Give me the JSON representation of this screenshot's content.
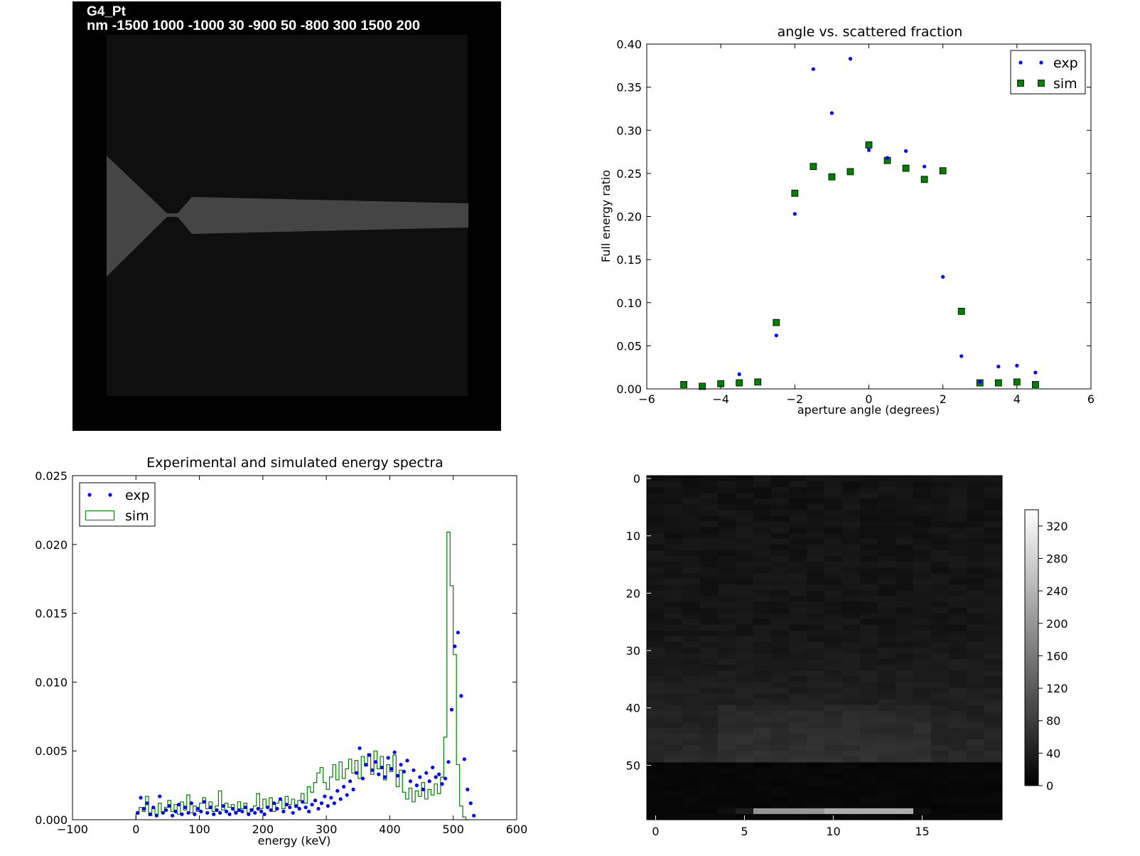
{
  "render_panel": {
    "title": "G4_Pt",
    "subtitle": "nm -1500 1000 -1000 30 -900 50 -800 300 1500 200",
    "background": "#000000",
    "slab_color": "#0f0f0f",
    "shape_color": "#454545"
  },
  "chart_data": [
    {
      "type": "scatter",
      "title": "angle vs. scattered fraction",
      "xlabel": "aperture angle (degrees)",
      "ylabel": "Full energy ratio",
      "xlim": [
        -6,
        6
      ],
      "ylim": [
        0,
        0.4
      ],
      "xticks": [
        -6,
        -4,
        -2,
        0,
        2,
        4,
        6
      ],
      "xtick_labels": [
        "−6",
        "−4",
        "−2",
        "0",
        "2",
        "4",
        "6"
      ],
      "yticks": [
        0.0,
        0.05,
        0.1,
        0.15,
        0.2,
        0.25,
        0.3,
        0.35,
        0.4
      ],
      "ytick_labels": [
        "0.00",
        "0.05",
        "0.10",
        "0.15",
        "0.20",
        "0.25",
        "0.30",
        "0.35",
        "0.40"
      ],
      "legend": "top-right",
      "series": [
        {
          "name": "exp",
          "marker": "dot",
          "color": "#0000ff",
          "x": [
            -2.5,
            -2,
            -1.5,
            -1,
            -0.5,
            0,
            0.5,
            1,
            1.5,
            2,
            2.5,
            3,
            3.5,
            4,
            4.5,
            -3.5
          ],
          "y": [
            0.062,
            0.203,
            0.371,
            0.32,
            0.383,
            0.277,
            0.268,
            0.276,
            0.258,
            0.13,
            0.038,
            0.008,
            0.026,
            0.027,
            0.019,
            0.017
          ]
        },
        {
          "name": "sim",
          "marker": "square",
          "color": "#007f00",
          "x": [
            -5,
            -4.5,
            -4,
            -3.5,
            -3,
            -2.5,
            -2,
            -1.5,
            -1,
            -0.5,
            0,
            0.5,
            1,
            1.5,
            2,
            2.5,
            3,
            3.5,
            4,
            4.5
          ],
          "y": [
            0.005,
            0.003,
            0.006,
            0.007,
            0.008,
            0.077,
            0.227,
            0.258,
            0.246,
            0.252,
            0.283,
            0.265,
            0.256,
            0.243,
            0.253,
            0.09,
            0.007,
            0.007,
            0.008,
            0.005
          ]
        }
      ]
    },
    {
      "type": "line",
      "title": "Experimental and simulated energy spectra",
      "xlabel": "energy (keV)",
      "ylabel": "",
      "xlim": [
        -100,
        600
      ],
      "ylim": [
        0,
        0.025
      ],
      "xticks": [
        -100,
        0,
        100,
        200,
        300,
        400,
        500,
        600
      ],
      "xtick_labels": [
        "−100",
        "0",
        "100",
        "200",
        "300",
        "400",
        "500",
        "600"
      ],
      "yticks": [
        0,
        0.005,
        0.01,
        0.015,
        0.02,
        0.025
      ],
      "ytick_labels": [
        "0.000",
        "0.005",
        "0.010",
        "0.015",
        "0.020",
        "0.025"
      ],
      "legend": "top-left",
      "series": [
        {
          "name": "exp",
          "marker": "dot",
          "color": "#0000ff",
          "x": [
            0,
            5,
            10,
            15,
            20,
            25,
            30,
            35,
            40,
            45,
            50,
            55,
            60,
            65,
            70,
            75,
            80,
            85,
            90,
            95,
            100,
            105,
            110,
            115,
            120,
            125,
            130,
            135,
            140,
            145,
            150,
            155,
            160,
            165,
            170,
            175,
            180,
            185,
            190,
            195,
            200,
            205,
            210,
            215,
            220,
            225,
            230,
            235,
            240,
            245,
            250,
            255,
            260,
            265,
            270,
            275,
            280,
            285,
            290,
            295,
            300,
            305,
            310,
            315,
            320,
            325,
            330,
            335,
            340,
            345,
            350,
            355,
            360,
            365,
            370,
            375,
            380,
            385,
            390,
            395,
            400,
            405,
            410,
            415,
            420,
            425,
            430,
            435,
            440,
            445,
            450,
            455,
            460,
            465,
            470,
            475,
            480,
            485,
            490,
            495,
            500,
            505,
            510,
            515,
            520,
            525,
            530
          ],
          "y": [
            0.0005,
            0.0016,
            0.0008,
            0.0012,
            0.0004,
            0.0009,
            0.0003,
            0.0017,
            0.0005,
            0.0007,
            0.001,
            0.0003,
            0.0006,
            0.0011,
            0.0004,
            0.0009,
            0.0005,
            0.0012,
            0.0004,
            0.0008,
            0.0006,
            0.0013,
            0.0005,
            0.0009,
            0.0004,
            0.0007,
            0.0005,
            0.001,
            0.0006,
            0.0004,
            0.0008,
            0.0005,
            0.0007,
            0.0006,
            0.0009,
            0.0004,
            0.0007,
            0.0005,
            0.0008,
            0.0006,
            0.0004,
            0.0009,
            0.0007,
            0.0012,
            0.0008,
            0.0015,
            0.0006,
            0.0011,
            0.0009,
            0.0005,
            0.001,
            0.0008,
            0.0013,
            0.0009,
            0.0006,
            0.0011,
            0.0014,
            0.0008,
            0.0012,
            0.0017,
            0.001,
            0.0016,
            0.0012,
            0.0021,
            0.0015,
            0.0024,
            0.0018,
            0.0028,
            0.0022,
            0.0034,
            0.0052,
            0.003,
            0.004,
            0.0047,
            0.0036,
            0.0042,
            0.0033,
            0.0038,
            0.0031,
            0.0045,
            0.0037,
            0.0049,
            0.0032,
            0.004,
            0.0035,
            0.0043,
            0.0028,
            0.0036,
            0.0025,
            0.0031,
            0.0022,
            0.0034,
            0.0028,
            0.0038,
            0.0031,
            0.0033,
            0.0026,
            0.003,
            0.0042,
            0.008,
            0.0126,
            0.0136,
            0.009,
            0.0044,
            0.0022,
            0.0012,
            0.0003
          ]
        },
        {
          "name": "sim",
          "marker": "step",
          "color": "#007f00",
          "x": [
            0,
            5,
            10,
            15,
            20,
            25,
            30,
            35,
            40,
            45,
            50,
            55,
            60,
            65,
            70,
            75,
            80,
            85,
            90,
            95,
            100,
            105,
            110,
            115,
            120,
            125,
            130,
            135,
            140,
            145,
            150,
            155,
            160,
            165,
            170,
            175,
            180,
            185,
            190,
            195,
            200,
            205,
            210,
            215,
            220,
            225,
            230,
            235,
            240,
            245,
            250,
            255,
            260,
            265,
            270,
            275,
            280,
            285,
            290,
            295,
            300,
            305,
            310,
            315,
            320,
            325,
            330,
            335,
            340,
            345,
            350,
            355,
            360,
            365,
            370,
            375,
            380,
            385,
            390,
            395,
            400,
            405,
            410,
            415,
            420,
            425,
            430,
            435,
            440,
            445,
            450,
            455,
            460,
            465,
            470,
            475,
            480,
            485,
            490,
            495,
            500,
            505,
            510,
            515,
            520
          ],
          "y": [
            0.0004,
            0.0009,
            0.0006,
            0.0017,
            0.0003,
            0.0008,
            0.0004,
            0.0012,
            0.0005,
            0.0009,
            0.0014,
            0.0006,
            0.0011,
            0.0004,
            0.0013,
            0.0007,
            0.0018,
            0.0005,
            0.001,
            0.0006,
            0.0012,
            0.0016,
            0.0008,
            0.0013,
            0.0006,
            0.001,
            0.0021,
            0.0007,
            0.0012,
            0.0009,
            0.0011,
            0.0006,
            0.0013,
            0.0008,
            0.0012,
            0.0005,
            0.0008,
            0.001,
            0.0019,
            0.0008,
            0.0015,
            0.0009,
            0.0016,
            0.0006,
            0.0012,
            0.0014,
            0.0008,
            0.0017,
            0.0011,
            0.0015,
            0.0009,
            0.0014,
            0.0019,
            0.0012,
            0.0024,
            0.002,
            0.0027,
            0.0034,
            0.0038,
            0.0027,
            0.0022,
            0.0031,
            0.004,
            0.0029,
            0.0042,
            0.003,
            0.0037,
            0.0044,
            0.0034,
            0.0043,
            0.003,
            0.0046,
            0.0039,
            0.0048,
            0.0033,
            0.005,
            0.0037,
            0.0046,
            0.0029,
            0.004,
            0.0035,
            0.0047,
            0.0024,
            0.0036,
            0.002,
            0.0015,
            0.0023,
            0.0013,
            0.0021,
            0.0017,
            0.0027,
            0.0015,
            0.0022,
            0.0018,
            0.0026,
            0.0019,
            0.0031,
            0.006,
            0.0209,
            0.017,
            0.012,
            0.004,
            0.001,
            0.0002,
            0.0
          ]
        }
      ]
    },
    {
      "type": "heatmap",
      "title": "",
      "xlabel": "",
      "ylabel": "",
      "xlim": [
        0,
        20
      ],
      "ylim": [
        60,
        0
      ],
      "xticks": [
        0,
        5,
        10,
        15
      ],
      "xtick_labels": [
        "0",
        "5",
        "10",
        "15"
      ],
      "yticks": [
        0,
        10,
        20,
        30,
        40,
        50
      ],
      "ytick_labels": [
        "0",
        "10",
        "20",
        "30",
        "40",
        "50"
      ],
      "rows": 60,
      "cols": 20,
      "colormap": "gray",
      "colorbar_range": [
        0,
        340
      ],
      "colorbar_ticks": [
        0,
        40,
        80,
        120,
        160,
        200,
        240,
        280,
        320
      ],
      "colorbar_tick_labels": [
        "0",
        "40",
        "80",
        "120",
        "160",
        "200",
        "240",
        "280",
        "320"
      ],
      "bright_row": 58,
      "bright_row_values": [
        0,
        0,
        0,
        0,
        20,
        40,
        200,
        200,
        200,
        200,
        230,
        230,
        230,
        230,
        230,
        20,
        0,
        0,
        0,
        0
      ]
    }
  ]
}
